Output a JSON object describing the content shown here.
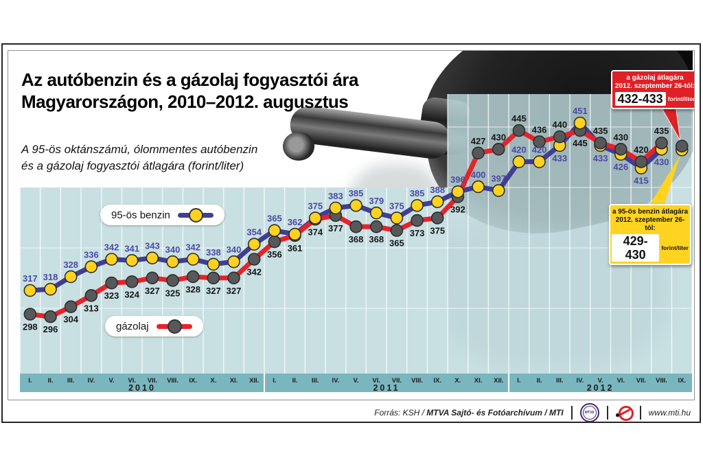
{
  "title": {
    "line1": "Az autóbenzin és a gázolaj fogyasztói ára",
    "line2": "Magyarországon, 2010–2012. augusztus"
  },
  "subtitle": {
    "line1": "A 95-ös oktánszámú, ólommentes autóbenzin",
    "line2": "és a gázolaj fogyasztói átlagára (forint/liter)"
  },
  "legend": {
    "benzin": "95-ös benzin",
    "gazolaj": "gázolaj"
  },
  "callouts": {
    "diesel": {
      "line1": "a gázolaj átlagára",
      "line2": "2012. szeptember 26-tól:",
      "value": "432-433",
      "unit": "forint/liter"
    },
    "petrol": {
      "line1": "a 95-ös benzin átlagára",
      "line2": "2012. szeptember 26-tól:",
      "value": "429-430",
      "unit": "forint/liter"
    }
  },
  "footer": {
    "source_prefix": "Forrás: KSH / ",
    "source_bold": "MTVA Sajtó- és Fotóarchívum / MTI",
    "mtva_logo": "MTVA",
    "website": "www.mti.hu"
  },
  "chart_data": {
    "type": "line",
    "unit": "forint/liter",
    "x_axis": {
      "years": [
        {
          "label": "2010",
          "months": [
            "I.",
            "II.",
            "III.",
            "IV.",
            "V.",
            "VI.",
            "VII.",
            "VIII.",
            "IX.",
            "X.",
            "XI.",
            "XII."
          ]
        },
        {
          "label": "2011",
          "months": [
            "I.",
            "II.",
            "III.",
            "IV.",
            "V.",
            "VI.",
            "VII.",
            "VIII.",
            "IX.",
            "X.",
            "XI.",
            "XII."
          ]
        },
        {
          "label": "2012",
          "months": [
            "I.",
            "II.",
            "III.",
            "IV.",
            "V.",
            "VI.",
            "VII.",
            "VIII.",
            "IX."
          ]
        }
      ]
    },
    "ylim": [
      280,
      470
    ],
    "grid": true,
    "legend_position": "inside-plot",
    "series": [
      {
        "name": "95-ös benzin",
        "line_color": "#403e94",
        "marker_color": "#ffd21f",
        "label_color": "#4a49a5",
        "values": [
          317,
          318,
          328,
          336,
          342,
          341,
          343,
          340,
          342,
          338,
          340,
          354,
          365,
          362,
          375,
          383,
          385,
          379,
          375,
          385,
          388,
          396,
          400,
          397,
          420,
          420,
          433,
          451,
          433,
          426,
          415,
          430,
          429.5
        ],
        "point_labels": [
          "317",
          "318",
          "328",
          "336",
          "342",
          "341",
          "343",
          "340",
          "342",
          "338",
          "340",
          "354",
          "365",
          "362",
          "375",
          "383",
          "385",
          "379",
          "375",
          "385",
          "388",
          "396",
          "400",
          "397",
          "420",
          "420",
          "433",
          "451",
          "433",
          "426",
          "415",
          "430",
          ""
        ],
        "label_pos": [
          "a",
          "a",
          "a",
          "a",
          "a",
          "a",
          "a",
          "a",
          "a",
          "a",
          "a",
          "a",
          "a",
          "a",
          "a",
          "a",
          "a",
          "a",
          "a",
          "a",
          "a",
          "a",
          "a",
          "a",
          "a",
          "a",
          "b",
          "a",
          "b",
          "b",
          "b",
          "b",
          ""
        ]
      },
      {
        "name": "gázolaj",
        "line_color": "#e62329",
        "marker_color": "#57585a",
        "label_color": "#161616",
        "values": [
          298,
          296,
          304,
          313,
          323,
          324,
          327,
          325,
          328,
          327,
          327,
          342,
          356,
          361,
          374,
          377,
          368,
          368,
          365,
          373,
          375,
          392,
          427,
          430,
          445,
          436,
          440,
          445,
          435,
          430,
          420,
          435,
          432.5
        ],
        "point_labels": [
          "298",
          "296",
          "304",
          "313",
          "323",
          "324",
          "327",
          "325",
          "328",
          "327",
          "327",
          "342",
          "356",
          "361",
          "374",
          "377",
          "368",
          "368",
          "365",
          "373",
          "375",
          "392",
          "427",
          "430",
          "445",
          "436",
          "440",
          "445",
          "435",
          "430",
          "420",
          "435",
          ""
        ],
        "label_pos": [
          "b",
          "b",
          "b",
          "b",
          "b",
          "b",
          "b",
          "b",
          "b",
          "b",
          "b",
          "b",
          "b",
          "b",
          "b",
          "b",
          "b",
          "b",
          "b",
          "b",
          "b",
          "b",
          "a",
          "a",
          "a",
          "a",
          "a",
          "b",
          "a",
          "a",
          "a",
          "a",
          ""
        ]
      }
    ],
    "final_point_note": "last point (2012 IX) shown without label; values given in callout boxes",
    "colors": {
      "panel": "#c9e0e3",
      "panel_translucent": "rgb(189,217,221)",
      "band": "#7ab6bf",
      "grid": "#ffffff",
      "marker_stroke": "#2e2e2e",
      "tick_text": "#1c1c1c",
      "pointer_red": "#df2025",
      "pointer_yellow": "#ffd320"
    }
  }
}
